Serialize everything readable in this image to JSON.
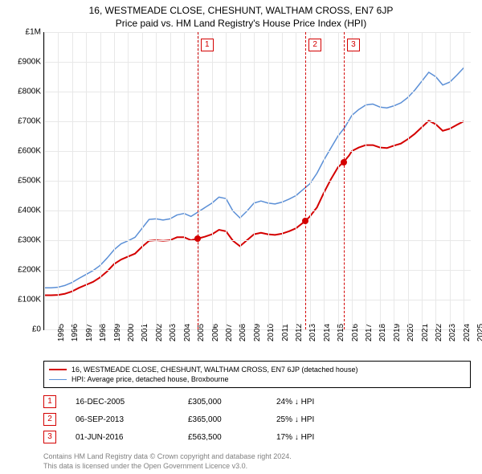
{
  "title": "16, WESTMEADE CLOSE, CHESHUNT, WALTHAM CROSS, EN7 6JP",
  "subtitle": "Price paid vs. HM Land Registry's House Price Index (HPI)",
  "chart": {
    "type": "line",
    "background_color": "#ffffff",
    "grid_color": "#e8e8e8",
    "axis_color": "#000000",
    "label_fontsize": 10,
    "title_fontsize": 12,
    "y": {
      "min": 0,
      "max": 1000000,
      "ticks": [
        0,
        100000,
        200000,
        300000,
        400000,
        500000,
        600000,
        700000,
        800000,
        900000,
        1000000
      ],
      "tick_labels": [
        "£0",
        "£100K",
        "£200K",
        "£300K",
        "£400K",
        "£500K",
        "£600K",
        "£700K",
        "£800K",
        "£900K",
        "£1M"
      ]
    },
    "x": {
      "min": 1995,
      "max": 2025.5,
      "ticks": [
        1995,
        1996,
        1997,
        1998,
        1999,
        2000,
        2001,
        2002,
        2003,
        2004,
        2005,
        2006,
        2007,
        2008,
        2009,
        2010,
        2011,
        2012,
        2013,
        2014,
        2015,
        2016,
        2017,
        2018,
        2019,
        2020,
        2021,
        2022,
        2023,
        2024,
        2025
      ],
      "tick_labels": [
        "1995",
        "1996",
        "1997",
        "1998",
        "1999",
        "2000",
        "2001",
        "2002",
        "2003",
        "2004",
        "2005",
        "2006",
        "2007",
        "2008",
        "2009",
        "2010",
        "2011",
        "2012",
        "2013",
        "2014",
        "2015",
        "2016",
        "2017",
        "2018",
        "2019",
        "2020",
        "2021",
        "2022",
        "2023",
        "2024",
        "2025"
      ]
    },
    "series": [
      {
        "id": "price_paid",
        "label": "16, WESTMEADE CLOSE, CHESHUNT, WALTHAM CROSS, EN7 6JP (detached house)",
        "color": "#d40000",
        "width": 2,
        "points": [
          [
            1995.0,
            115000
          ],
          [
            1995.5,
            115000
          ],
          [
            1996.0,
            116000
          ],
          [
            1996.5,
            120000
          ],
          [
            1997.0,
            128000
          ],
          [
            1997.5,
            140000
          ],
          [
            1998.0,
            150000
          ],
          [
            1998.5,
            160000
          ],
          [
            1999.0,
            175000
          ],
          [
            1999.5,
            195000
          ],
          [
            2000.0,
            220000
          ],
          [
            2000.5,
            235000
          ],
          [
            2001.0,
            245000
          ],
          [
            2001.5,
            255000
          ],
          [
            2002.0,
            278000
          ],
          [
            2002.5,
            298000
          ],
          [
            2003.0,
            300000
          ],
          [
            2003.5,
            298000
          ],
          [
            2004.0,
            300000
          ],
          [
            2004.5,
            310000
          ],
          [
            2005.0,
            310000
          ],
          [
            2005.5,
            300000
          ],
          [
            2005.96,
            305000
          ],
          [
            2006.5,
            312000
          ],
          [
            2007.0,
            320000
          ],
          [
            2007.5,
            335000
          ],
          [
            2008.0,
            330000
          ],
          [
            2008.5,
            298000
          ],
          [
            2009.0,
            280000
          ],
          [
            2009.5,
            300000
          ],
          [
            2010.0,
            320000
          ],
          [
            2010.5,
            325000
          ],
          [
            2011.0,
            320000
          ],
          [
            2011.5,
            318000
          ],
          [
            2012.0,
            322000
          ],
          [
            2012.5,
            330000
          ],
          [
            2013.0,
            340000
          ],
          [
            2013.68,
            365000
          ],
          [
            2014.0,
            380000
          ],
          [
            2014.5,
            410000
          ],
          [
            2015.0,
            460000
          ],
          [
            2015.5,
            505000
          ],
          [
            2016.0,
            545000
          ],
          [
            2016.42,
            563500
          ],
          [
            2016.8,
            585000
          ],
          [
            2017.0,
            600000
          ],
          [
            2017.5,
            612000
          ],
          [
            2018.0,
            620000
          ],
          [
            2018.5,
            620000
          ],
          [
            2019.0,
            612000
          ],
          [
            2019.5,
            610000
          ],
          [
            2020.0,
            618000
          ],
          [
            2020.5,
            625000
          ],
          [
            2021.0,
            640000
          ],
          [
            2021.5,
            658000
          ],
          [
            2022.0,
            680000
          ],
          [
            2022.5,
            702000
          ],
          [
            2023.0,
            690000
          ],
          [
            2023.5,
            668000
          ],
          [
            2024.0,
            675000
          ],
          [
            2024.5,
            688000
          ],
          [
            2025.0,
            700000
          ]
        ]
      },
      {
        "id": "hpi",
        "label": "HPI: Average price, detached house, Broxbourne",
        "color": "#5b8fd6",
        "width": 1.5,
        "points": [
          [
            1995.0,
            140000
          ],
          [
            1995.5,
            140000
          ],
          [
            1996.0,
            142000
          ],
          [
            1996.5,
            148000
          ],
          [
            1997.0,
            158000
          ],
          [
            1997.5,
            172000
          ],
          [
            1998.0,
            185000
          ],
          [
            1998.5,
            198000
          ],
          [
            1999.0,
            215000
          ],
          [
            1999.5,
            240000
          ],
          [
            2000.0,
            268000
          ],
          [
            2000.5,
            288000
          ],
          [
            2001.0,
            298000
          ],
          [
            2001.5,
            310000
          ],
          [
            2002.0,
            340000
          ],
          [
            2002.5,
            370000
          ],
          [
            2003.0,
            372000
          ],
          [
            2003.5,
            368000
          ],
          [
            2004.0,
            372000
          ],
          [
            2004.5,
            385000
          ],
          [
            2005.0,
            390000
          ],
          [
            2005.5,
            380000
          ],
          [
            2006.0,
            395000
          ],
          [
            2006.5,
            410000
          ],
          [
            2007.0,
            425000
          ],
          [
            2007.5,
            445000
          ],
          [
            2008.0,
            440000
          ],
          [
            2008.5,
            398000
          ],
          [
            2009.0,
            375000
          ],
          [
            2009.5,
            398000
          ],
          [
            2010.0,
            425000
          ],
          [
            2010.5,
            432000
          ],
          [
            2011.0,
            425000
          ],
          [
            2011.5,
            422000
          ],
          [
            2012.0,
            428000
          ],
          [
            2012.5,
            438000
          ],
          [
            2013.0,
            450000
          ],
          [
            2013.5,
            470000
          ],
          [
            2014.0,
            490000
          ],
          [
            2014.5,
            525000
          ],
          [
            2015.0,
            570000
          ],
          [
            2015.5,
            610000
          ],
          [
            2016.0,
            650000
          ],
          [
            2016.5,
            680000
          ],
          [
            2017.0,
            720000
          ],
          [
            2017.5,
            740000
          ],
          [
            2018.0,
            755000
          ],
          [
            2018.5,
            758000
          ],
          [
            2019.0,
            748000
          ],
          [
            2019.5,
            745000
          ],
          [
            2020.0,
            752000
          ],
          [
            2020.5,
            762000
          ],
          [
            2021.0,
            780000
          ],
          [
            2021.5,
            805000
          ],
          [
            2022.0,
            835000
          ],
          [
            2022.5,
            865000
          ],
          [
            2023.0,
            850000
          ],
          [
            2023.5,
            822000
          ],
          [
            2024.0,
            832000
          ],
          [
            2024.5,
            855000
          ],
          [
            2025.0,
            880000
          ]
        ]
      }
    ],
    "sale_markers": [
      {
        "n": "1",
        "x": 2005.96,
        "y": 305000,
        "color": "#d40000"
      },
      {
        "n": "2",
        "x": 2013.68,
        "y": 365000,
        "color": "#d40000"
      },
      {
        "n": "3",
        "x": 2016.42,
        "y": 563500,
        "color": "#d40000"
      }
    ],
    "vlines": [
      {
        "n": "1",
        "x": 2005.96,
        "color": "#d40000"
      },
      {
        "n": "2",
        "x": 2013.68,
        "color": "#d40000"
      },
      {
        "n": "3",
        "x": 2016.42,
        "color": "#d40000"
      }
    ]
  },
  "legend": {
    "items": [
      {
        "color": "#d40000",
        "width": 2,
        "label": "16, WESTMEADE CLOSE, CHESHUNT, WALTHAM CROSS, EN7 6JP (detached house)"
      },
      {
        "color": "#5b8fd6",
        "width": 1.5,
        "label": "HPI: Average price, detached house, Broxbourne"
      }
    ]
  },
  "sales": [
    {
      "n": "1",
      "date": "16-DEC-2005",
      "price": "£305,000",
      "diff": "24% ↓ HPI",
      "color": "#d40000"
    },
    {
      "n": "2",
      "date": "06-SEP-2013",
      "price": "£365,000",
      "diff": "25% ↓ HPI",
      "color": "#d40000"
    },
    {
      "n": "3",
      "date": "01-JUN-2016",
      "price": "£563,500",
      "diff": "17% ↓ HPI",
      "color": "#d40000"
    }
  ],
  "footnote_line1": "Contains HM Land Registry data © Crown copyright and database right 2024.",
  "footnote_line2": "This data is licensed under the Open Government Licence v3.0."
}
